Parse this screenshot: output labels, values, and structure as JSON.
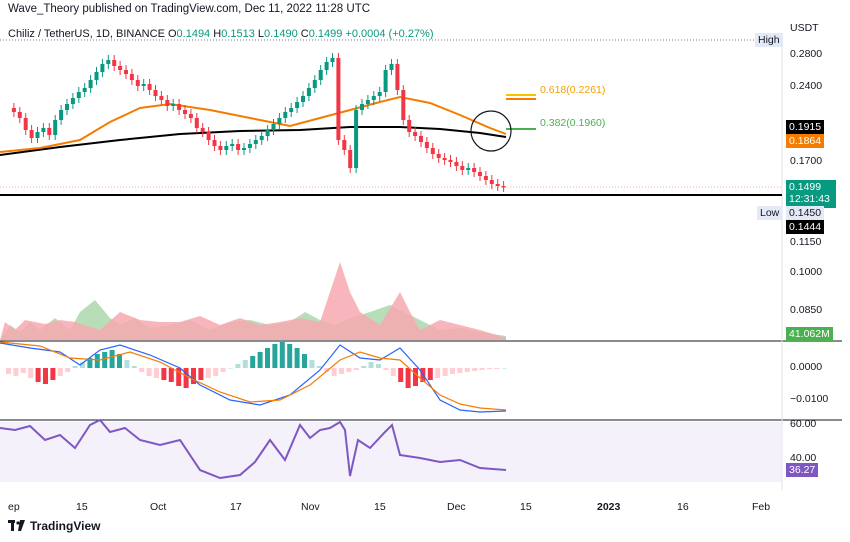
{
  "header": {
    "publish_line": "Wave_Theory published on TradingView.com, Dec 11, 2022 11:28 UTC"
  },
  "symbol": {
    "name": "Chiliz / TetherUS, 1D, BINANCE",
    "o_label": "O",
    "o_value": "0.1494",
    "h_label": "H",
    "h_value": "0.1513",
    "l_label": "L",
    "l_value": "0.1490",
    "c_label": "C",
    "c_value": "0.1499",
    "change": "+0.0004 (+0.27%)"
  },
  "price_axis": {
    "currency": "USDT",
    "high_label": "High",
    "low_label": "Low",
    "ticks": [
      "0.2800",
      "0.2400",
      "0.1700",
      "0.1150",
      "0.1000",
      "0.0850",
      "0.0000",
      "−0.0100",
      "60.00",
      "40.00"
    ],
    "tag_0191": "0.1915",
    "tag_0186": "0.1864",
    "tag_last": "0.1499",
    "tag_countdown": "12:31:43",
    "tag_low": "0.1450",
    "tag_0144": "0.1444",
    "tag_volume": "41.062M",
    "tag_rsi": "36.27"
  },
  "fib": {
    "f0618": "0.618(0.2261)",
    "f0382": "0.382(0.1960)"
  },
  "time_axis": {
    "labels": [
      "ep",
      "15",
      "Oct",
      "17",
      "Nov",
      "15",
      "Dec",
      "15",
      "2023",
      "16",
      "Feb"
    ]
  },
  "footer": {
    "brand": "TradingView",
    "logo": "tradingview-logo-icon"
  },
  "colors": {
    "up": "#089981",
    "down": "#f23645",
    "ema_orange": "#f57c00",
    "ema_black": "#000000",
    "fib_yellow": "#f5c400",
    "fib_green": "#4caf50",
    "volume_up": "#a5d6a7",
    "volume_down": "#f7a9b0",
    "rsi": "#7e57c2",
    "macd_blue": "#2962ff"
  }
}
